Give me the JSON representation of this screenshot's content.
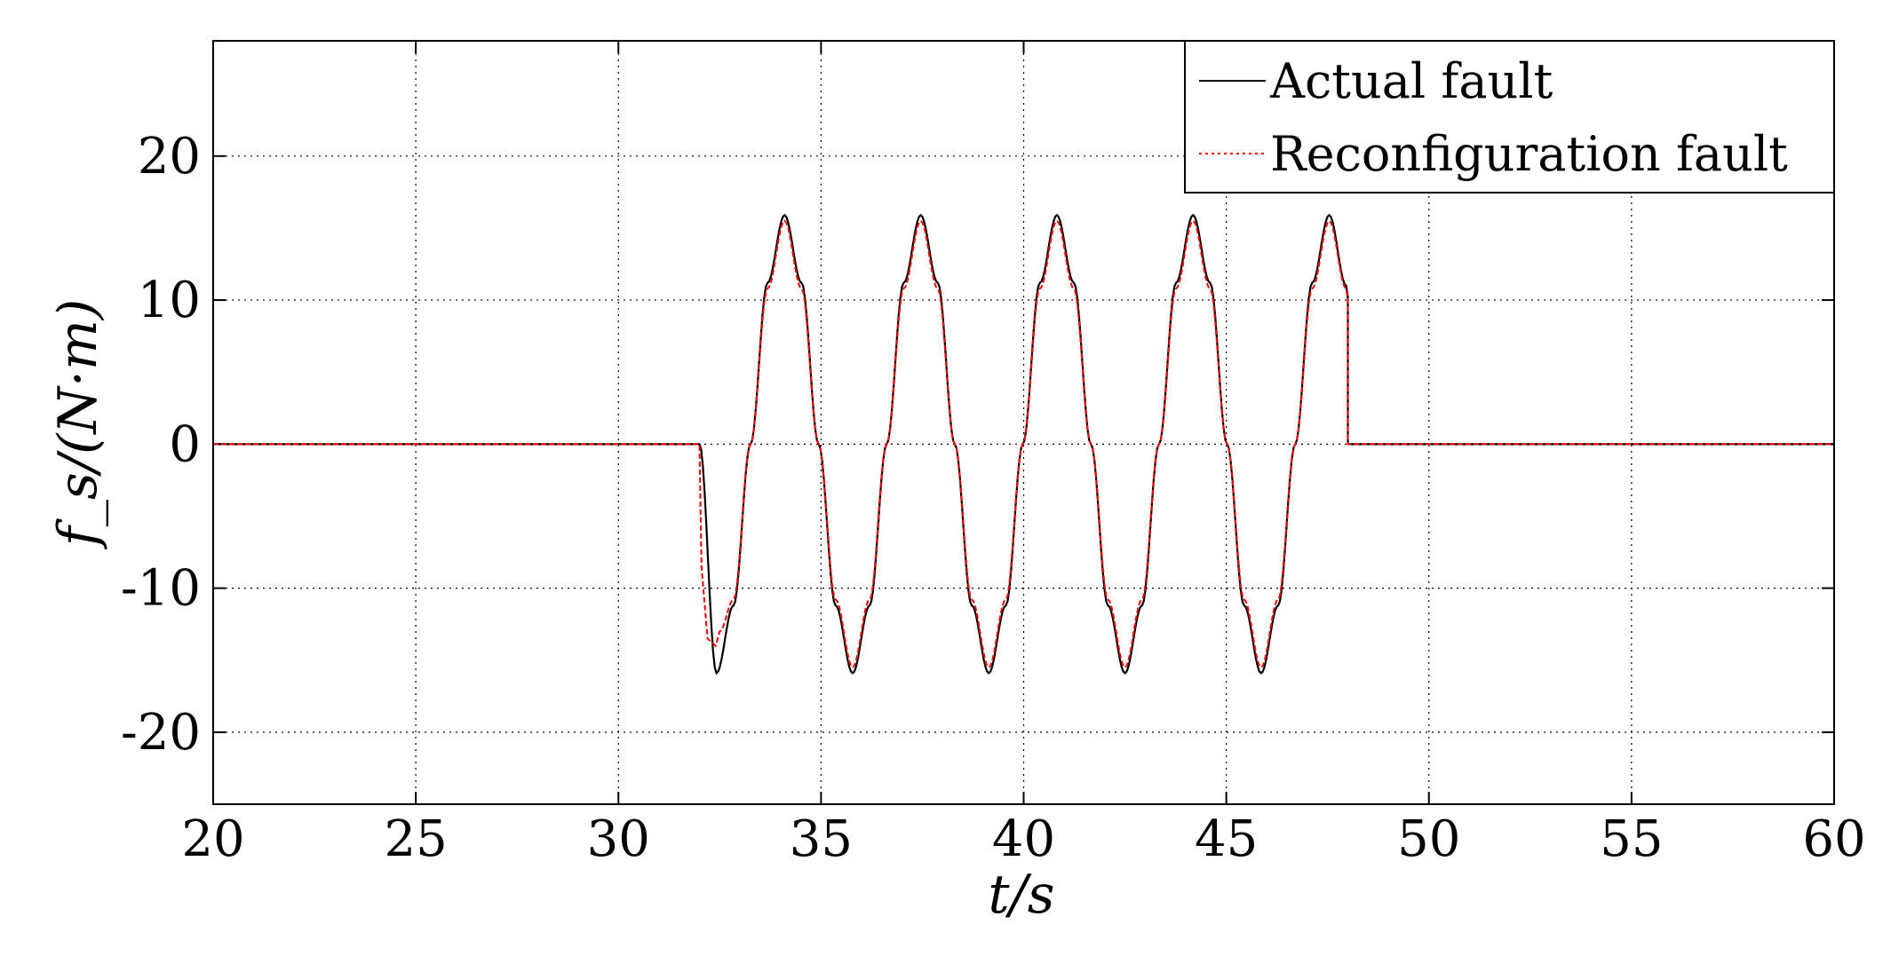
{
  "chart_data": {
    "type": "line",
    "title": "",
    "xlabel": "t/s",
    "ylabel": "f_s/(N·m)",
    "xlim": [
      20,
      60
    ],
    "ylim": [
      -25,
      28
    ],
    "xticks": [
      20,
      25,
      30,
      35,
      40,
      45,
      50,
      55,
      60
    ],
    "yticks": [
      -20,
      -10,
      0,
      10,
      20
    ],
    "xtick_labels": [
      "20",
      "25",
      "30",
      "35",
      "40",
      "45",
      "50",
      "55",
      "60"
    ],
    "ytick_labels": [
      "-20",
      "-10",
      "0",
      "10",
      "20"
    ],
    "grid": true,
    "legend_position": "top-right",
    "series": [
      {
        "name": "Actual fault",
        "color": "#000000",
        "line_style": "solid",
        "x": [
          20,
          32,
          32,
          32.42,
          32.84,
          33.26,
          33.68,
          34.1,
          34.52,
          34.94,
          35.36,
          35.78,
          36.2,
          36.62,
          37.04,
          37.46,
          37.88,
          38.3,
          38.72,
          39.14,
          39.56,
          39.98,
          40.4,
          40.82,
          41.24,
          41.66,
          42.08,
          42.5,
          42.92,
          43.34,
          43.76,
          44.18,
          44.6,
          45.02,
          45.44,
          45.86,
          46.28,
          46.7,
          47.12,
          47.54,
          47.96,
          48,
          48,
          60
        ],
        "y": [
          0,
          0,
          0,
          -15.9,
          -11.2,
          0,
          11.2,
          15.9,
          11.2,
          0,
          -11.2,
          -15.9,
          -11.2,
          0,
          11.2,
          15.9,
          11.2,
          0,
          -11.2,
          -15.9,
          -11.2,
          0,
          11.2,
          15.9,
          11.2,
          0,
          -11.2,
          -15.9,
          -11.2,
          0,
          11.2,
          15.9,
          11.2,
          0,
          -11.2,
          -15.9,
          -11.2,
          0,
          11.2,
          15.9,
          11.0,
          10.2,
          0,
          0
        ]
      },
      {
        "name": "Reconfiguration fault",
        "color": "#ff0000",
        "line_style": "dashed",
        "x": [
          20,
          32,
          32.05,
          32.2,
          32.4,
          32.5,
          32.84,
          33.26,
          33.68,
          34.1,
          34.52,
          34.94,
          35.36,
          35.78,
          36.2,
          36.62,
          37.04,
          37.46,
          37.88,
          38.3,
          38.72,
          39.14,
          39.56,
          39.98,
          40.4,
          40.82,
          41.24,
          41.66,
          42.08,
          42.5,
          42.92,
          43.34,
          43.76,
          44.18,
          44.6,
          45.02,
          45.44,
          45.86,
          46.28,
          46.7,
          47.12,
          47.54,
          47.96,
          48,
          48,
          60
        ],
        "y": [
          0,
          0,
          -8.5,
          -13.5,
          -14.0,
          -13.0,
          -10.8,
          0,
          10.8,
          15.5,
          10.8,
          0,
          -10.8,
          -15.5,
          -10.8,
          0,
          10.8,
          15.5,
          10.8,
          0,
          -10.8,
          -15.5,
          -10.8,
          0,
          10.8,
          15.5,
          10.8,
          0,
          -10.8,
          -15.5,
          -10.8,
          0,
          10.8,
          15.5,
          10.8,
          0,
          -10.8,
          -15.5,
          -10.8,
          0,
          10.8,
          15.5,
          10.8,
          10.0,
          0,
          0
        ]
      }
    ]
  }
}
